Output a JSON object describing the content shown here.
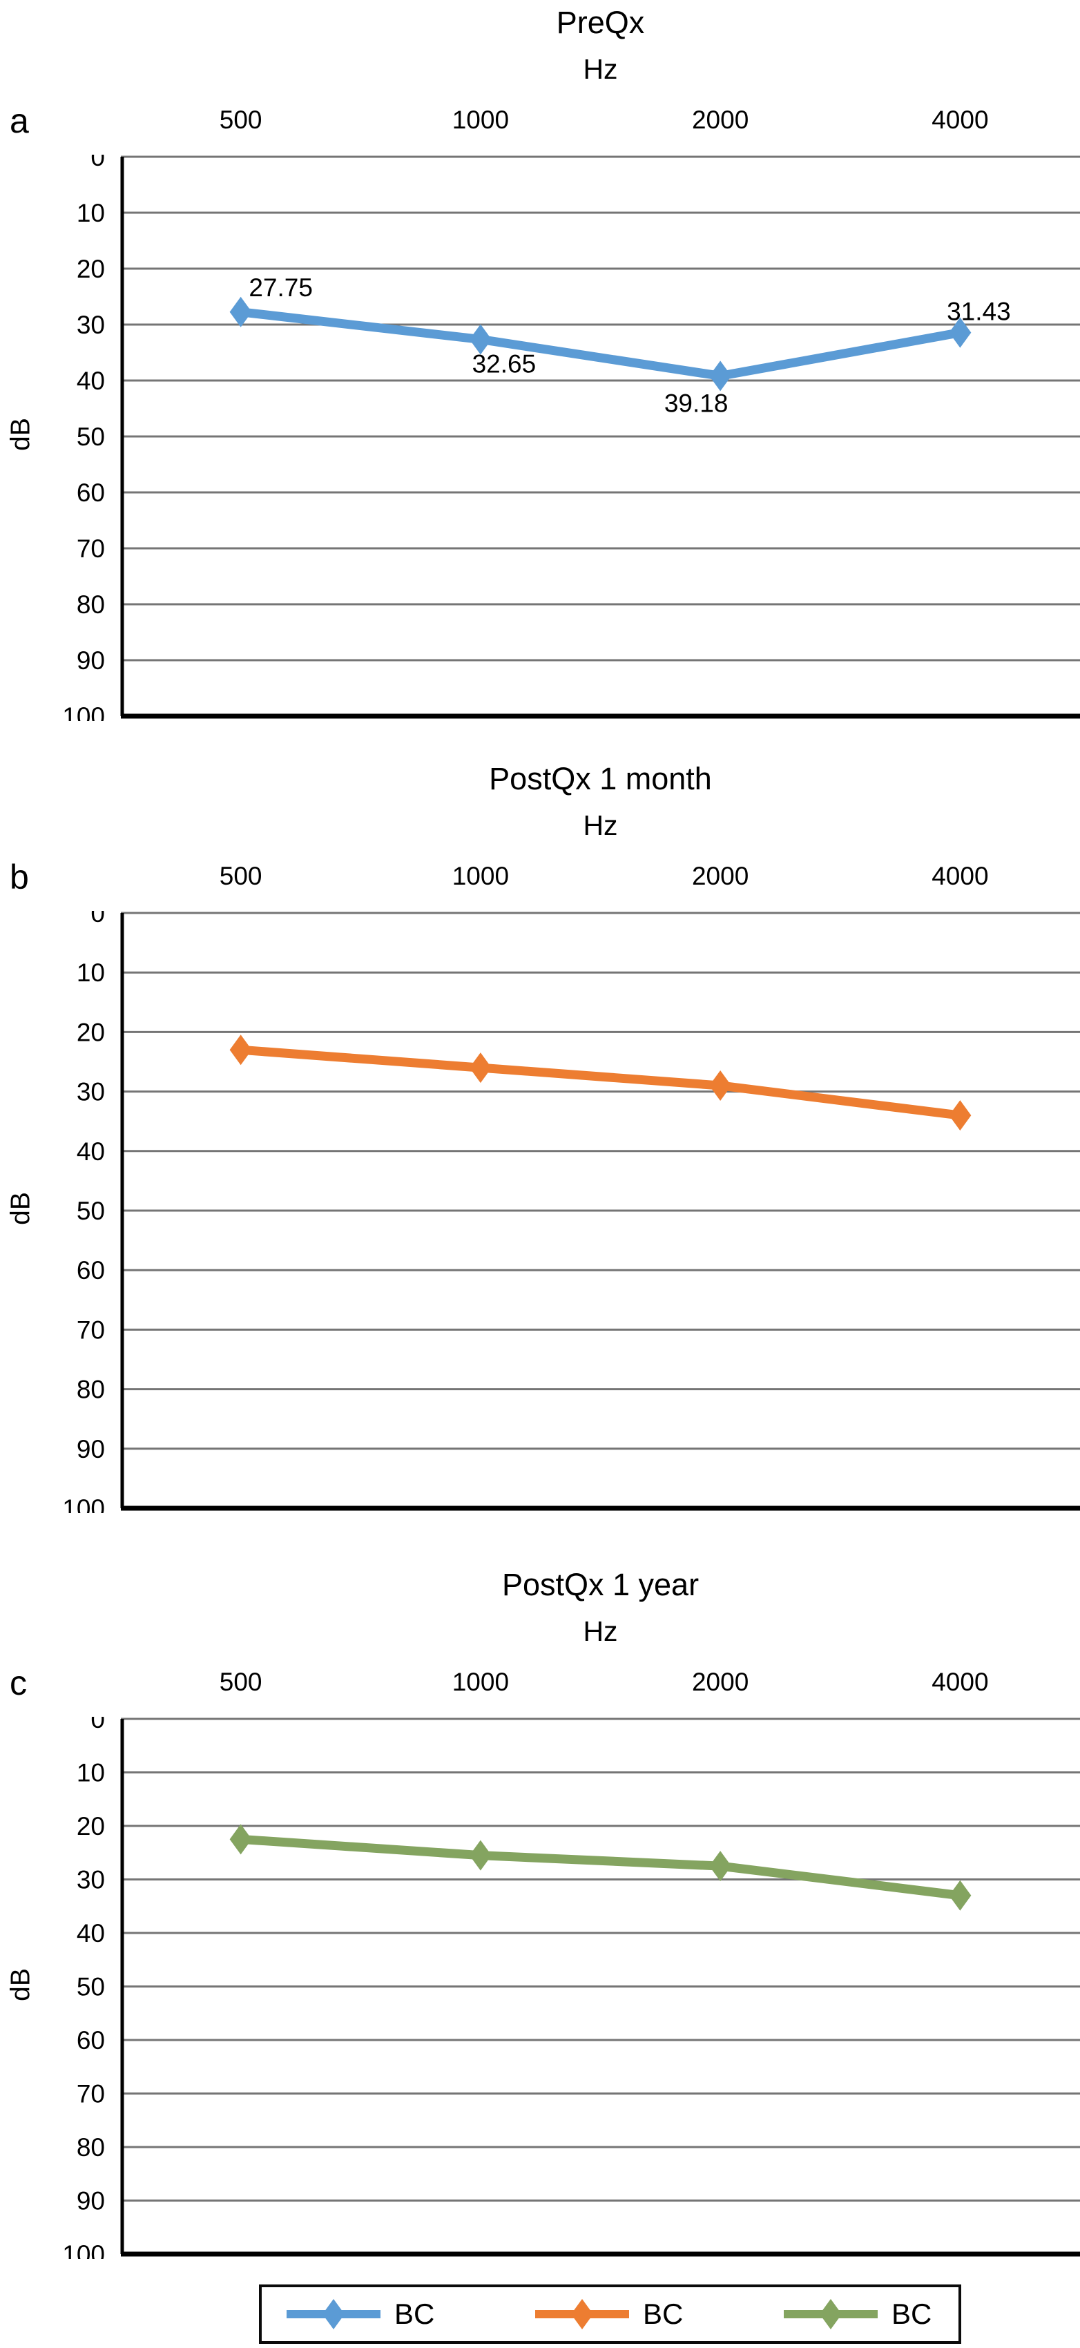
{
  "figure": {
    "kind": "audiogram-figure",
    "background": "#ffffff",
    "grid_color": "#757575",
    "axis_color": "#000000"
  },
  "chart_data": [
    {
      "type": "line",
      "panel_letter": "a",
      "title": "PreQx",
      "xlabel": "Hz",
      "ylabel": "dB",
      "categories": [
        "500",
        "1000",
        "2000",
        "4000"
      ],
      "yticks": [
        0,
        10,
        20,
        30,
        40,
        50,
        60,
        70,
        80,
        90,
        100
      ],
      "ylim": [
        0,
        100
      ],
      "y_axis_inverted": true,
      "grid": "horizontal",
      "legend_position": "none",
      "series": [
        {
          "name": "BC",
          "color": "#5B9BD5",
          "marker": "diamond",
          "values": [
            27.75,
            32.65,
            39.18,
            31.43
          ],
          "point_labels": [
            "27.75",
            "32.65",
            "39.18",
            "31.43"
          ]
        }
      ]
    },
    {
      "type": "line",
      "panel_letter": "b",
      "title": "PostQx 1 month",
      "xlabel": "Hz",
      "ylabel": "dB",
      "categories": [
        "500",
        "1000",
        "2000",
        "4000"
      ],
      "yticks": [
        0,
        10,
        20,
        30,
        40,
        50,
        60,
        70,
        80,
        90,
        100
      ],
      "ylim": [
        0,
        100
      ],
      "y_axis_inverted": true,
      "grid": "horizontal",
      "legend_position": "none",
      "series": [
        {
          "name": "BC",
          "color": "#ED7D31",
          "marker": "diamond",
          "values": [
            23,
            26,
            29,
            34
          ],
          "point_labels": null
        }
      ]
    },
    {
      "type": "line",
      "panel_letter": "c",
      "title": "PostQx 1 year",
      "xlabel": "Hz",
      "ylabel": "dB",
      "categories": [
        "500",
        "1000",
        "2000",
        "4000"
      ],
      "yticks": [
        0,
        10,
        20,
        30,
        40,
        50,
        60,
        70,
        80,
        90,
        100
      ],
      "ylim": [
        0,
        100
      ],
      "y_axis_inverted": true,
      "grid": "horizontal",
      "legend_position": "none",
      "series": [
        {
          "name": "BC",
          "color": "#84A460",
          "marker": "diamond",
          "values": [
            22.5,
            25.5,
            27.5,
            33
          ],
          "point_labels": null
        }
      ]
    }
  ],
  "legend": {
    "position": "bottom",
    "items": [
      {
        "label": "BC",
        "color": "#5B9BD5",
        "marker": "diamond"
      },
      {
        "label": "BC",
        "color": "#ED7D31",
        "marker": "diamond"
      },
      {
        "label": "BC",
        "color": "#84A460",
        "marker": "diamond"
      }
    ]
  }
}
